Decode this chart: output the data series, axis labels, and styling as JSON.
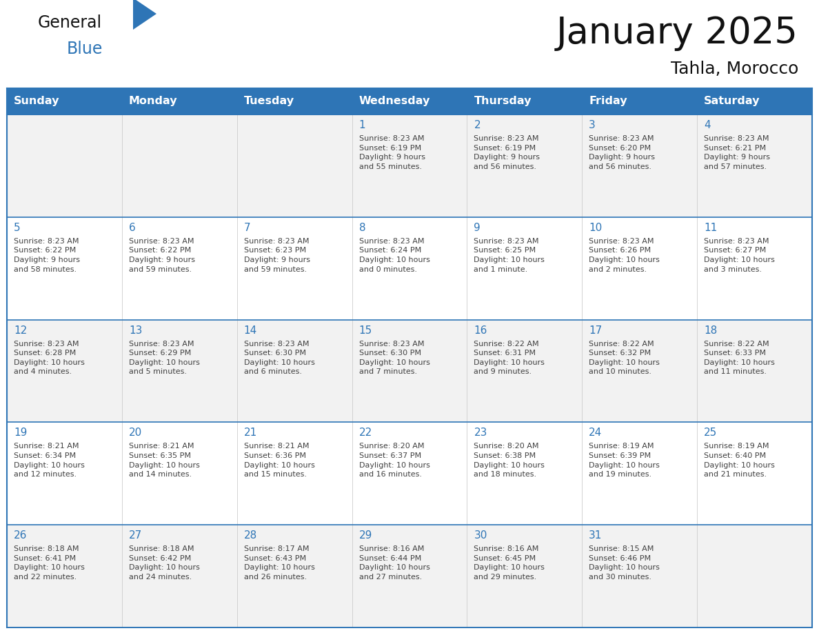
{
  "title": "January 2025",
  "subtitle": "Tahla, Morocco",
  "header_bg": "#2E75B6",
  "header_text_color": "#FFFFFF",
  "border_color": "#2E75B6",
  "day_number_color": "#2E75B6",
  "text_color": "#404040",
  "days_of_week": [
    "Sunday",
    "Monday",
    "Tuesday",
    "Wednesday",
    "Thursday",
    "Friday",
    "Saturday"
  ],
  "row_colors": [
    "#F2F2F2",
    "#FFFFFF",
    "#F2F2F2",
    "#FFFFFF",
    "#F2F2F2"
  ],
  "weeks": [
    [
      {
        "day": "",
        "info": ""
      },
      {
        "day": "",
        "info": ""
      },
      {
        "day": "",
        "info": ""
      },
      {
        "day": "1",
        "info": "Sunrise: 8:23 AM\nSunset: 6:19 PM\nDaylight: 9 hours\nand 55 minutes."
      },
      {
        "day": "2",
        "info": "Sunrise: 8:23 AM\nSunset: 6:19 PM\nDaylight: 9 hours\nand 56 minutes."
      },
      {
        "day": "3",
        "info": "Sunrise: 8:23 AM\nSunset: 6:20 PM\nDaylight: 9 hours\nand 56 minutes."
      },
      {
        "day": "4",
        "info": "Sunrise: 8:23 AM\nSunset: 6:21 PM\nDaylight: 9 hours\nand 57 minutes."
      }
    ],
    [
      {
        "day": "5",
        "info": "Sunrise: 8:23 AM\nSunset: 6:22 PM\nDaylight: 9 hours\nand 58 minutes."
      },
      {
        "day": "6",
        "info": "Sunrise: 8:23 AM\nSunset: 6:22 PM\nDaylight: 9 hours\nand 59 minutes."
      },
      {
        "day": "7",
        "info": "Sunrise: 8:23 AM\nSunset: 6:23 PM\nDaylight: 9 hours\nand 59 minutes."
      },
      {
        "day": "8",
        "info": "Sunrise: 8:23 AM\nSunset: 6:24 PM\nDaylight: 10 hours\nand 0 minutes."
      },
      {
        "day": "9",
        "info": "Sunrise: 8:23 AM\nSunset: 6:25 PM\nDaylight: 10 hours\nand 1 minute."
      },
      {
        "day": "10",
        "info": "Sunrise: 8:23 AM\nSunset: 6:26 PM\nDaylight: 10 hours\nand 2 minutes."
      },
      {
        "day": "11",
        "info": "Sunrise: 8:23 AM\nSunset: 6:27 PM\nDaylight: 10 hours\nand 3 minutes."
      }
    ],
    [
      {
        "day": "12",
        "info": "Sunrise: 8:23 AM\nSunset: 6:28 PM\nDaylight: 10 hours\nand 4 minutes."
      },
      {
        "day": "13",
        "info": "Sunrise: 8:23 AM\nSunset: 6:29 PM\nDaylight: 10 hours\nand 5 minutes."
      },
      {
        "day": "14",
        "info": "Sunrise: 8:23 AM\nSunset: 6:30 PM\nDaylight: 10 hours\nand 6 minutes."
      },
      {
        "day": "15",
        "info": "Sunrise: 8:23 AM\nSunset: 6:30 PM\nDaylight: 10 hours\nand 7 minutes."
      },
      {
        "day": "16",
        "info": "Sunrise: 8:22 AM\nSunset: 6:31 PM\nDaylight: 10 hours\nand 9 minutes."
      },
      {
        "day": "17",
        "info": "Sunrise: 8:22 AM\nSunset: 6:32 PM\nDaylight: 10 hours\nand 10 minutes."
      },
      {
        "day": "18",
        "info": "Sunrise: 8:22 AM\nSunset: 6:33 PM\nDaylight: 10 hours\nand 11 minutes."
      }
    ],
    [
      {
        "day": "19",
        "info": "Sunrise: 8:21 AM\nSunset: 6:34 PM\nDaylight: 10 hours\nand 12 minutes."
      },
      {
        "day": "20",
        "info": "Sunrise: 8:21 AM\nSunset: 6:35 PM\nDaylight: 10 hours\nand 14 minutes."
      },
      {
        "day": "21",
        "info": "Sunrise: 8:21 AM\nSunset: 6:36 PM\nDaylight: 10 hours\nand 15 minutes."
      },
      {
        "day": "22",
        "info": "Sunrise: 8:20 AM\nSunset: 6:37 PM\nDaylight: 10 hours\nand 16 minutes."
      },
      {
        "day": "23",
        "info": "Sunrise: 8:20 AM\nSunset: 6:38 PM\nDaylight: 10 hours\nand 18 minutes."
      },
      {
        "day": "24",
        "info": "Sunrise: 8:19 AM\nSunset: 6:39 PM\nDaylight: 10 hours\nand 19 minutes."
      },
      {
        "day": "25",
        "info": "Sunrise: 8:19 AM\nSunset: 6:40 PM\nDaylight: 10 hours\nand 21 minutes."
      }
    ],
    [
      {
        "day": "26",
        "info": "Sunrise: 8:18 AM\nSunset: 6:41 PM\nDaylight: 10 hours\nand 22 minutes."
      },
      {
        "day": "27",
        "info": "Sunrise: 8:18 AM\nSunset: 6:42 PM\nDaylight: 10 hours\nand 24 minutes."
      },
      {
        "day": "28",
        "info": "Sunrise: 8:17 AM\nSunset: 6:43 PM\nDaylight: 10 hours\nand 26 minutes."
      },
      {
        "day": "29",
        "info": "Sunrise: 8:16 AM\nSunset: 6:44 PM\nDaylight: 10 hours\nand 27 minutes."
      },
      {
        "day": "30",
        "info": "Sunrise: 8:16 AM\nSunset: 6:45 PM\nDaylight: 10 hours\nand 29 minutes."
      },
      {
        "day": "31",
        "info": "Sunrise: 8:15 AM\nSunset: 6:46 PM\nDaylight: 10 hours\nand 30 minutes."
      },
      {
        "day": "",
        "info": ""
      }
    ]
  ],
  "fig_width": 11.88,
  "fig_height": 9.18,
  "dpi": 100
}
